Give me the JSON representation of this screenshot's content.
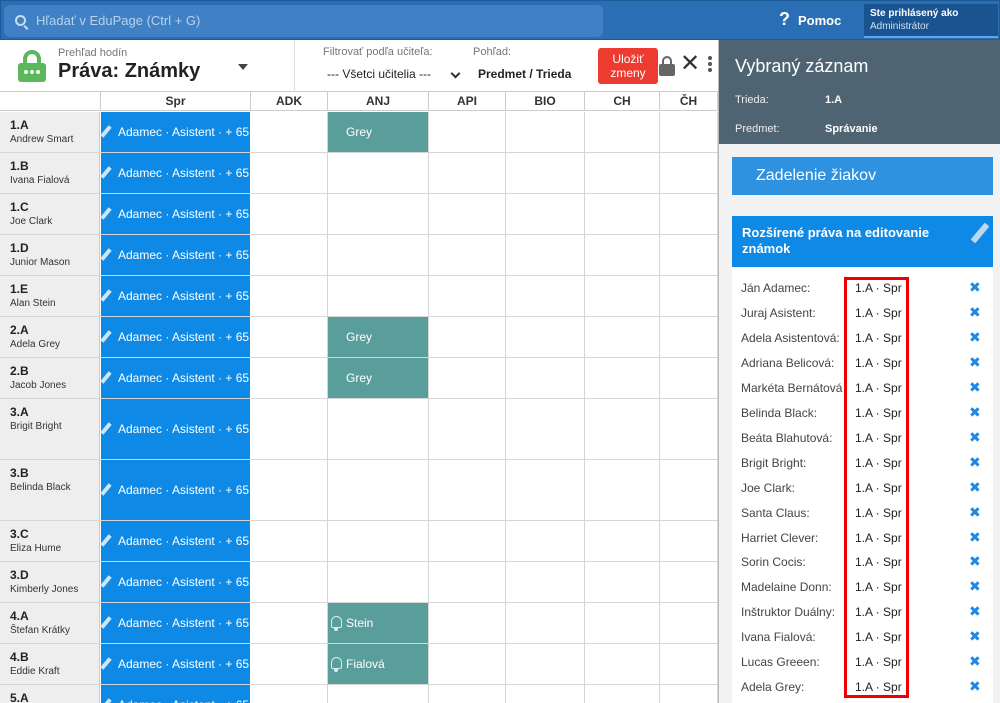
{
  "topbar": {
    "search_placeholder": "Hľadať v EduPage (Ctrl + G)",
    "help_label": "Pomoc",
    "user_line1": "Ste prihlásený ako",
    "user_line2": "Administrátor"
  },
  "header": {
    "subtitle": "Prehľad hodín",
    "title": "Práva: Známky",
    "filter_label": "Filtrovať podľa učiteľa:",
    "filter_value": "--- Všetci učitelia ---",
    "view_label": "Pohľad:",
    "view_value": "Predmet / Trieda",
    "save_label": "Uložiť zmeny"
  },
  "grid": {
    "columns": [
      "Spr",
      "ADK",
      "ANJ",
      "API",
      "BIO",
      "CH",
      "ČH"
    ],
    "spr_text": "Adamec · Asistent · + 65",
    "rows": [
      {
        "cls": "1.A",
        "teacher": "Andrew Smart",
        "anj": "Grey"
      },
      {
        "cls": "1.B",
        "teacher": "Ivana Fialová",
        "anj": ""
      },
      {
        "cls": "1.C",
        "teacher": "Joe Clark",
        "anj": ""
      },
      {
        "cls": "1.D",
        "teacher": "Junior Mason",
        "anj": ""
      },
      {
        "cls": "1.E",
        "teacher": "Alan Stein",
        "anj": ""
      },
      {
        "cls": "2.A",
        "teacher": "Adela Grey",
        "anj": "Grey"
      },
      {
        "cls": "2.B",
        "teacher": "Jacob Jones",
        "anj": "Grey"
      },
      {
        "cls": "3.A",
        "teacher": "Brigit Bright",
        "anj": ""
      },
      {
        "cls": "3.B",
        "teacher": "Belinda Black",
        "anj": ""
      },
      {
        "cls": "3.C",
        "teacher": "Eliza Hume",
        "anj": ""
      },
      {
        "cls": "3.D",
        "teacher": "Kimberly Jones",
        "anj": ""
      },
      {
        "cls": "4.A",
        "teacher": "Štefan Krátky",
        "anj": "Stein"
      },
      {
        "cls": "4.B",
        "teacher": "Eddie Kraft",
        "anj": "Fialová"
      },
      {
        "cls": "5.A",
        "teacher": "",
        "anj": ""
      }
    ]
  },
  "panel": {
    "title": "Vybraný záznam",
    "class_label": "Trieda:",
    "class_value": "1.A",
    "subject_label": "Predmet:",
    "subject_value": "Správanie",
    "assign_button": "Zadelenie žiakov",
    "rights_title": "Rozšírené práva na editovanie známok",
    "remove_symbol": "✖",
    "entries": [
      {
        "name": "Ján Adamec:",
        "value": "1.A · Spr"
      },
      {
        "name": "Juraj Asistent:",
        "value": "1.A · Spr"
      },
      {
        "name": "Adela Asistentová:",
        "value": "1.A · Spr"
      },
      {
        "name": "Adriana Belicová:",
        "value": "1.A · Spr"
      },
      {
        "name": "Markéta Bernátová:",
        "value": "1.A · Spr"
      },
      {
        "name": "Belinda Black:",
        "value": "1.A · Spr"
      },
      {
        "name": "Beáta Blahutová:",
        "value": "1.A · Spr"
      },
      {
        "name": "Brigit Bright:",
        "value": "1.A · Spr"
      },
      {
        "name": "Joe Clark:",
        "value": "1.A · Spr"
      },
      {
        "name": "Santa Claus:",
        "value": "1.A · Spr"
      },
      {
        "name": "Harriet Clever:",
        "value": "1.A · Spr"
      },
      {
        "name": "Sorin Cocis:",
        "value": "1.A · Spr"
      },
      {
        "name": "Madelaine Donn:",
        "value": "1.A · Spr"
      },
      {
        "name": "Inštruktor Duálny:",
        "value": "1.A · Spr"
      },
      {
        "name": "Ivana Fialová:",
        "value": "1.A · Spr"
      },
      {
        "name": "Lucas Greeen:",
        "value": "1.A · Spr"
      },
      {
        "name": "Adela Grey:",
        "value": "1.A · Spr"
      }
    ]
  }
}
